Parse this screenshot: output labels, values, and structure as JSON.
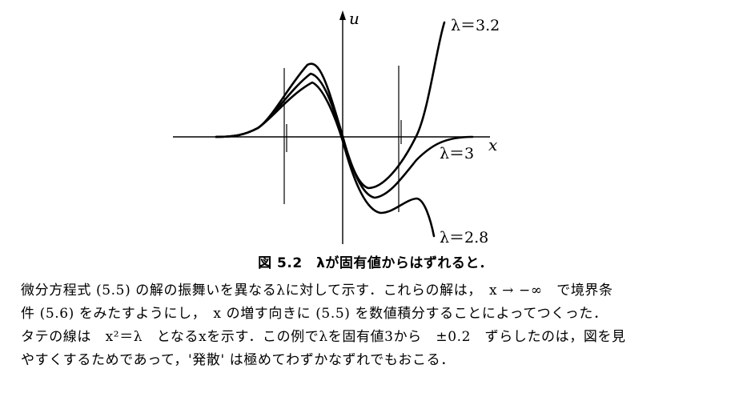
{
  "figure": {
    "axis_labels": {
      "x": "x",
      "y": "u"
    },
    "curve_labels": [
      "λ＝3.2",
      "λ＝3",
      "λ＝2.8"
    ]
  },
  "caption": "図 5.2　λが固有値からはずれると．",
  "paragraph": {
    "lines": [
      "微分方程式 (5.5) の解の振舞いを異なるλに対して示す．これらの解は，　x → −∞　で境界条",
      "件 (5.6) をみたすようにし，　x の増す向きに (5.5) を数値積分することによってつくった．",
      "タテの線は　x²＝λ　となるxを示す．この例でλを固有値3から　±0.2　ずらしたのは，図を見",
      "やすくするためであって，'発散' は極めてわずかなずれでもおこる．"
    ]
  }
}
